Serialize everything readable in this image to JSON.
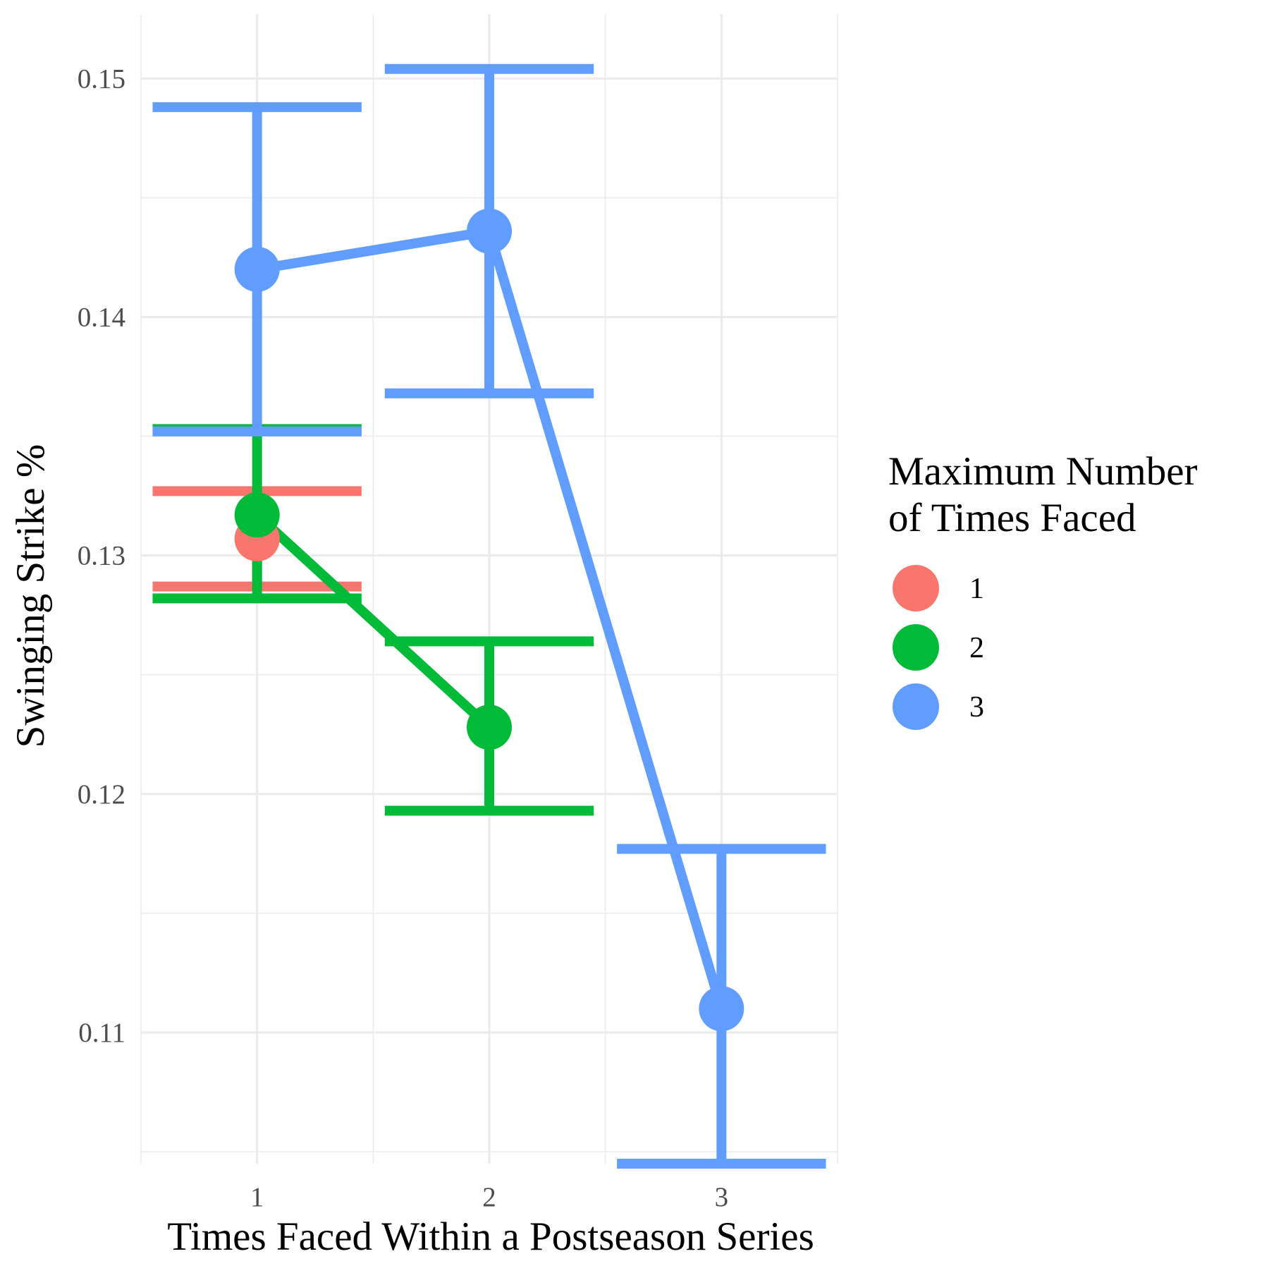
{
  "chart_data": {
    "type": "line",
    "title": "",
    "xlabel": "Times Faced Within a Postseason Series",
    "ylabel": "Swinging Strike %",
    "x_categories": [
      "1",
      "2",
      "3"
    ],
    "xlim": [
      0.5,
      3.5
    ],
    "ylim": [
      0.1045,
      0.1527
    ],
    "y_ticks": [
      0.11,
      0.12,
      0.13,
      0.14,
      0.15
    ],
    "y_tick_labels": [
      "0.11",
      "0.12",
      "0.13",
      "0.14",
      "0.15"
    ],
    "grid": true,
    "legend": {
      "title_lines": [
        "Maximum Number",
        "of Times Faced"
      ],
      "placement": "right"
    },
    "series": [
      {
        "name": "1",
        "color": "#F8766D",
        "points": [
          {
            "x": 1,
            "y": 0.1307,
            "ymin": 0.1287,
            "ymax": 0.1327
          }
        ]
      },
      {
        "name": "2",
        "color": "#00BA38",
        "points": [
          {
            "x": 1,
            "y": 0.1317,
            "ymin": 0.1282,
            "ymax": 0.1353
          },
          {
            "x": 2,
            "y": 0.1228,
            "ymin": 0.1193,
            "ymax": 0.1264
          }
        ]
      },
      {
        "name": "3",
        "color": "#619CFF",
        "points": [
          {
            "x": 1,
            "y": 0.142,
            "ymin": 0.1352,
            "ymax": 0.1488
          },
          {
            "x": 2,
            "y": 0.1436,
            "ymin": 0.1368,
            "ymax": 0.1504
          },
          {
            "x": 3,
            "y": 0.111,
            "ymin": 0.1045,
            "ymax": 0.1177
          }
        ]
      }
    ]
  }
}
